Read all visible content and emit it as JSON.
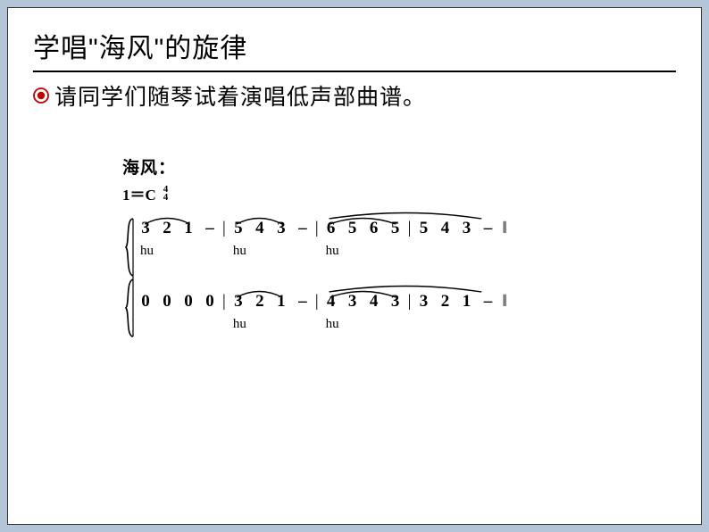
{
  "title": "学唱\"海风\"的旋律",
  "instruction": "请同学们随琴试着演唱低声部曲谱。",
  "bullet": {
    "ring_color": "#c00000",
    "fill_color": "#ffffff",
    "dot_color": "#c00000"
  },
  "score": {
    "label": "海风：",
    "key": "1＝C",
    "time_top": "4",
    "time_bottom": "4",
    "end_barline": "‖",
    "staves": [
      {
        "measures": [
          {
            "notes": [
              "3",
              "2",
              "1",
              "–"
            ],
            "tie_span": [
              0,
              2
            ],
            "lyric": "hu"
          },
          {
            "notes": [
              "5",
              "4",
              "3",
              "–"
            ],
            "tie_span": [
              0,
              2
            ],
            "lyric": "hu"
          },
          {
            "notes": [
              "6",
              "5",
              "6",
              "5"
            ],
            "tie_span": [
              0,
              3
            ],
            "lyric": "hu"
          },
          {
            "notes": [
              "5",
              "4",
              "3",
              "–"
            ],
            "tie_span": null,
            "lyric": ""
          }
        ],
        "long_tie": {
          "from_measure": 2,
          "to_measure": 3
        }
      },
      {
        "measures": [
          {
            "notes": [
              "0",
              "0",
              "0",
              "0"
            ],
            "tie_span": null,
            "lyric": ""
          },
          {
            "notes": [
              "3",
              "2",
              "1",
              "–"
            ],
            "tie_span": [
              0,
              2
            ],
            "lyric": "hu"
          },
          {
            "notes": [
              "4",
              "3",
              "4",
              "3"
            ],
            "tie_span": [
              0,
              3
            ],
            "lyric": "hu"
          },
          {
            "notes": [
              "3",
              "2",
              "1",
              "–"
            ],
            "tie_span": null,
            "lyric": ""
          }
        ],
        "long_tie": {
          "from_measure": 2,
          "to_measure": 3
        }
      }
    ]
  },
  "colors": {
    "page_bg": "#b5c5d8",
    "sheet_bg": "#ffffff",
    "text": "#000000"
  }
}
